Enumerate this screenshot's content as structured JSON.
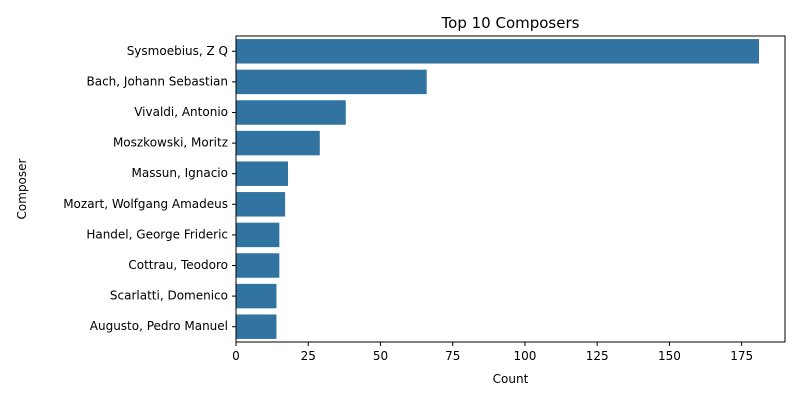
{
  "chart_data": {
    "type": "bar",
    "orientation": "horizontal",
    "title": "Top 10 Composers",
    "xlabel": "Count",
    "ylabel": "Composer",
    "categories": [
      "Sysmoebius, Z Q",
      "Bach, Johann Sebastian",
      "Vivaldi, Antonio",
      "Moszkowski, Moritz",
      "Massun, Ignacio",
      "Mozart, Wolfgang Amadeus",
      "Handel, George Frideric",
      "Cottrau, Teodoro",
      "Scarlatti, Domenico",
      "Augusto, Pedro Manuel"
    ],
    "values": [
      181,
      66,
      38,
      29,
      18,
      17,
      15,
      15,
      14,
      14
    ],
    "xlim": [
      0,
      190
    ],
    "xticks": [
      0,
      25,
      50,
      75,
      100,
      125,
      150,
      175
    ],
    "bar_color": "#3274a1",
    "grid": false,
    "legend": "none"
  }
}
